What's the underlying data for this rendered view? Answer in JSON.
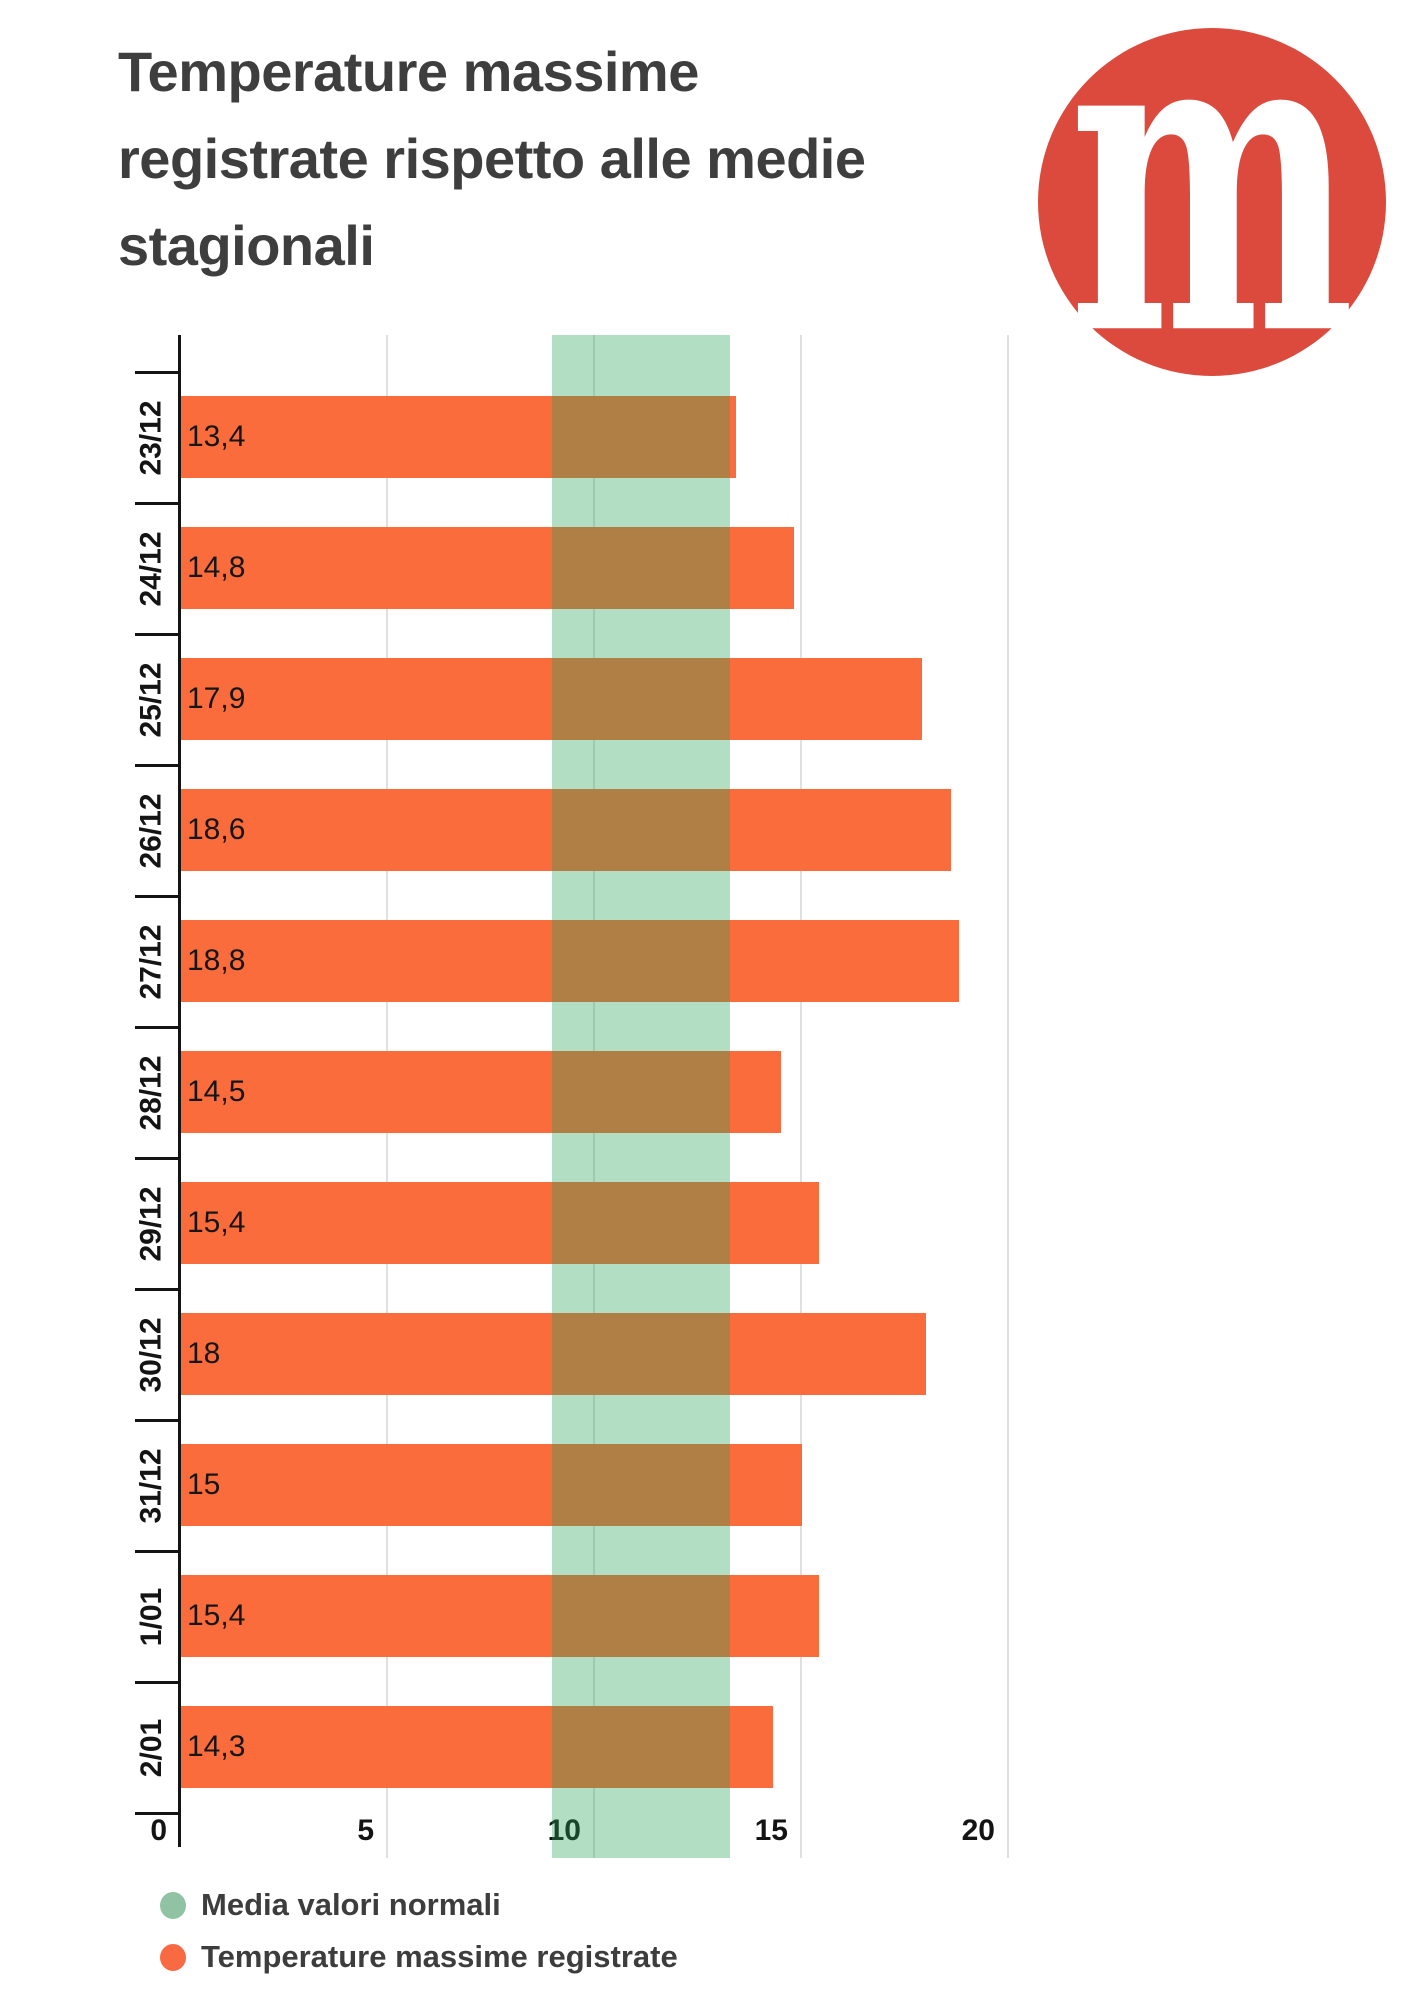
{
  "header": {
    "title_lines": [
      "Temperature massime",
      "registrate rispetto alle medie",
      "stagionali"
    ],
    "title_full": "Temperature massime registrate rispetto alle medie stagionali",
    "logo_letter": "m"
  },
  "colors": {
    "bar_orange": "#FB6C3C",
    "band_green_fill": "rgba(33,163,85,0.35)",
    "band_green_over_white": "#B1DEC3",
    "overlap_ochre": "#B07E43",
    "legend_green": "#8FC3A4",
    "legend_orange": "#FA6A42",
    "logo_red": "#DB4A3C",
    "logo_letter_white": "#FFFFFF",
    "axis_black": "#141414",
    "gridline_gray": "#E0E0E0",
    "title_gray": "#3E3E3E",
    "label_black": "#151515",
    "legend_text_gray": "#3D3D3D"
  },
  "chart_data": {
    "type": "bar",
    "orientation": "horizontal",
    "title": "Temperature massime registrate rispetto alle medie stagionali",
    "categories": [
      "23/12",
      "24/12",
      "25/12",
      "26/12",
      "27/12",
      "28/12",
      "29/12",
      "30/12",
      "31/12",
      "1/01",
      "2/01"
    ],
    "series": [
      {
        "name": "Temperature massime registrate",
        "values": [
          13.4,
          14.8,
          17.9,
          18.6,
          18.8,
          14.5,
          15.4,
          18,
          15,
          15.4,
          14.3
        ]
      }
    ],
    "value_labels": [
      "13,4",
      "14,8",
      "17,9",
      "18,6",
      "18,8",
      "14,5",
      "15,4",
      "18",
      "15",
      "15,4",
      "14,3"
    ],
    "x_ticks": [
      0,
      5,
      10,
      15,
      20
    ],
    "xlim": [
      0,
      26.8
    ],
    "grid": true,
    "normal_band": {
      "label": "Media valori normali",
      "min": 9,
      "max": 13.3
    },
    "legend_position": "bottom-left",
    "xlabel": "",
    "ylabel": ""
  },
  "legend": {
    "items": [
      {
        "label": "Media valori normali",
        "swatch": "green-dot"
      },
      {
        "label": "Temperature massime registrate",
        "swatch": "orange-dot"
      }
    ]
  }
}
